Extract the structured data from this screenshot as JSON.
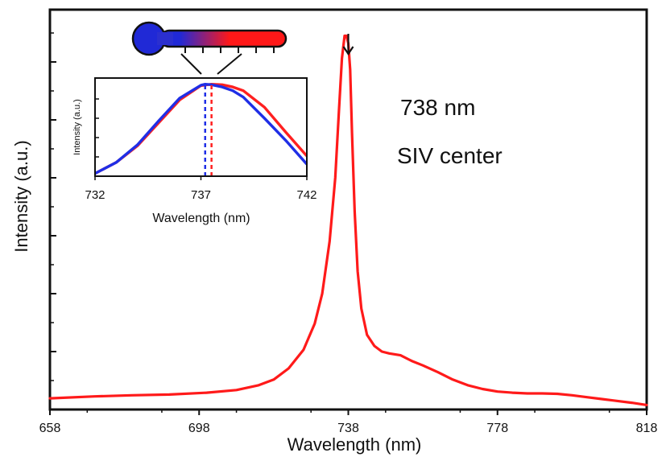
{
  "chart_data": [
    {
      "type": "line",
      "xlabel": "Wavelength (nm)",
      "ylabel": "Intensity (a.u.)",
      "xlim": [
        658,
        818
      ],
      "ylim": [
        0,
        1.07
      ],
      "xticks": [
        658,
        698,
        738,
        778,
        818
      ],
      "y_tick_labels_shown": false,
      "grid": false,
      "annotations": [
        "738 nm",
        "SIV center"
      ],
      "arrow_marker_at_x": 738,
      "series": [
        {
          "color": "#ff1a1a",
          "x": [
            658,
            670,
            680,
            690,
            700,
            708,
            714,
            718,
            722,
            726,
            729,
            731,
            733,
            734.5,
            735.5,
            736.3,
            737,
            737.5,
            738,
            738.5,
            739,
            739.7,
            740.5,
            741.5,
            743,
            745,
            747,
            749,
            752,
            755,
            758,
            762,
            766,
            770,
            774,
            778,
            782,
            786,
            790,
            794,
            798,
            802,
            806,
            810,
            814,
            818
          ],
          "y": [
            0.03,
            0.035,
            0.038,
            0.04,
            0.045,
            0.052,
            0.065,
            0.08,
            0.11,
            0.16,
            0.23,
            0.31,
            0.45,
            0.62,
            0.8,
            0.94,
            1.0,
            1.0,
            0.98,
            0.91,
            0.74,
            0.53,
            0.37,
            0.27,
            0.2,
            0.17,
            0.155,
            0.15,
            0.145,
            0.13,
            0.118,
            0.1,
            0.08,
            0.065,
            0.055,
            0.048,
            0.045,
            0.043,
            0.043,
            0.042,
            0.038,
            0.033,
            0.028,
            0.023,
            0.018,
            0.012
          ]
        }
      ]
    },
    {
      "type": "line",
      "xlabel": "Wavelength (nm)",
      "ylabel": "Intensity (a.u.)",
      "xlim": [
        732,
        742
      ],
      "ylim": [
        0,
        1.05
      ],
      "xticks": [
        732,
        737,
        742
      ],
      "grid": false,
      "series": [
        {
          "color": "#ff2020",
          "x": [
            732,
            733,
            734,
            735,
            736,
            737,
            737.5,
            738,
            738.5,
            739,
            740,
            741,
            742
          ],
          "y": [
            0.03,
            0.15,
            0.33,
            0.58,
            0.83,
            0.985,
            1.0,
            0.995,
            0.97,
            0.93,
            0.75,
            0.48,
            0.22
          ],
          "peak_x": 737.5
        },
        {
          "color": "#1f2ee6",
          "x": [
            732,
            733,
            734,
            735,
            736,
            737,
            737.2,
            737.5,
            738,
            738.5,
            739,
            740,
            741,
            742
          ],
          "y": [
            0.03,
            0.15,
            0.34,
            0.6,
            0.85,
            0.99,
            1.0,
            0.995,
            0.97,
            0.93,
            0.86,
            0.63,
            0.39,
            0.13
          ],
          "peak_x": 737.2
        }
      ]
    }
  ],
  "thermometer_icon": "thermometer-icon",
  "colors": {
    "main_line": "#ff1a1a",
    "inset_red": "#ff2020",
    "inset_blue": "#1f2ee6",
    "axis": "#111111"
  }
}
